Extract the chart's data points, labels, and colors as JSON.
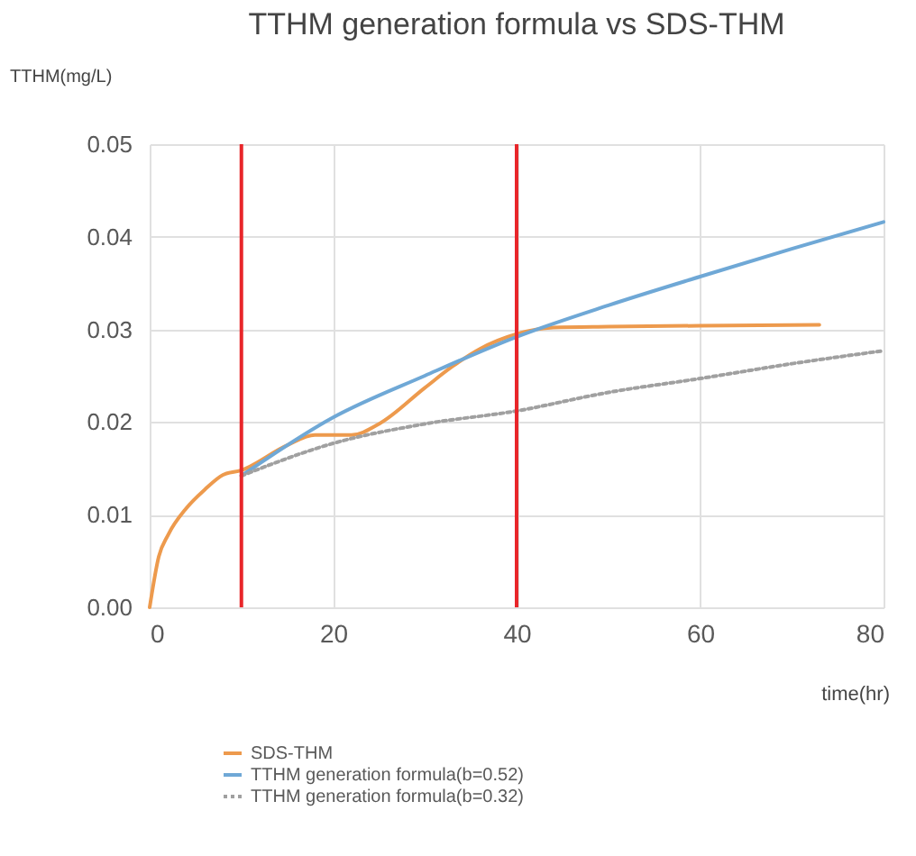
{
  "chart_data": {
    "type": "line",
    "title": "TTHM generation formula vs SDS-THM",
    "xlabel": "time(hr)",
    "ylabel": "TTHM(mg/L)",
    "xlim": [
      0,
      80
    ],
    "xticks": [
      0,
      20,
      40,
      60,
      80
    ],
    "ylim": [
      0,
      0.05
    ],
    "yticks": [
      {
        "value": 0,
        "label": "0.00"
      },
      0.01,
      0.02,
      0.03,
      0.04,
      0.05
    ],
    "grid": true,
    "legend": "bottom",
    "marker": "none",
    "series": [
      {
        "name": "SDS-THM",
        "color": "#ed9a4d",
        "line_style": "solid",
        "x": [
          0,
          1,
          2,
          4,
          6,
          8,
          10,
          15,
          18,
          22,
          25,
          30,
          33,
          36,
          40,
          44,
          50,
          60,
          73
        ],
        "values": [
          0,
          0.0055,
          0.0078,
          0.0107,
          0.0127,
          0.0143,
          0.0148,
          0.0175,
          0.0186,
          0.0186,
          0.0198,
          0.0237,
          0.026,
          0.0279,
          0.0295,
          0.0302,
          0.0303,
          0.0304,
          0.0305
        ]
      },
      {
        "name": "TTHM generation formula(b=0.52)",
        "color": "#6fa8d6",
        "line_style": "solid",
        "x": [
          10,
          20,
          30,
          40,
          50,
          60,
          70,
          80
        ],
        "values": [
          0.0142,
          0.0205,
          0.025,
          0.0292,
          0.0326,
          0.0357,
          0.0387,
          0.0416
        ]
      },
      {
        "name": "TTHM generation formula(b=0.32)",
        "color": "#a0a0a0",
        "line_style": "dotted",
        "x": [
          10,
          20,
          30,
          40,
          50,
          60,
          70,
          80
        ],
        "values": [
          0.0142,
          0.0177,
          0.0198,
          0.0212,
          0.0232,
          0.0247,
          0.0263,
          0.0277
        ]
      }
    ],
    "ref_lines": [
      {
        "axis": "x",
        "value": 10,
        "color": "#e8262a"
      },
      {
        "axis": "x",
        "value": 40,
        "color": "#e8262a"
      }
    ]
  }
}
